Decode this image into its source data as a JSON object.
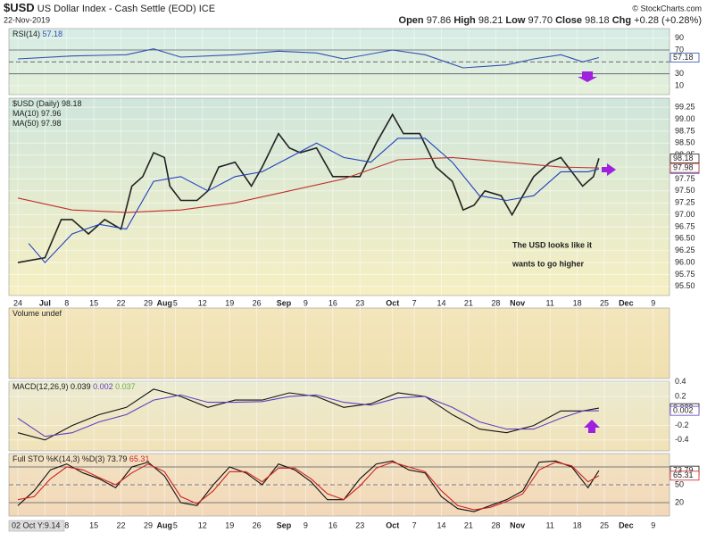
{
  "header": {
    "symbol": "$USD",
    "name": "US Dollar Index - Cash Settle (EOD)",
    "exchange": "ICE",
    "date": "22-Nov-2019",
    "quote": [
      {
        "label": "Open",
        "value": "97.86"
      },
      {
        "label": "High",
        "value": "98.21"
      },
      {
        "label": "Low",
        "value": "97.70"
      },
      {
        "label": "Close",
        "value": "98.18"
      },
      {
        "label": "Chg",
        "value": "+0.28 (+0.28%)"
      }
    ],
    "source": "© StockCharts.com",
    "cursor": "02 Oct Y:9.14"
  },
  "chart_data": [
    {
      "type": "line",
      "title": "RSI(14)",
      "ylim": [
        -5,
        106
      ],
      "yticks": [
        90,
        70,
        30,
        10
      ],
      "levels": [
        70,
        50,
        30
      ],
      "series": [
        {
          "color": "#3050b0",
          "value_label": "57.18",
          "x": [
            0,
            10,
            20,
            25,
            30,
            40,
            48,
            55,
            60,
            69,
            75,
            82,
            90,
            95,
            100,
            104,
            107
          ],
          "values": [
            55,
            60,
            62,
            72,
            58,
            62,
            68,
            65,
            55,
            70,
            62,
            40,
            45,
            55,
            62,
            50,
            57.18
          ]
        }
      ]
    },
    {
      "type": "line",
      "xlim": [
        -1.64,
        120
      ],
      "xticks": [
        {
          "value": 0,
          "label": "24"
        },
        {
          "value": 5,
          "label": "Jul"
        },
        {
          "value": 9,
          "label": "8"
        },
        {
          "value": 14,
          "label": "15"
        },
        {
          "value": 19,
          "label": "22"
        },
        {
          "value": 24,
          "label": "29"
        },
        {
          "value": 27,
          "label": "Aug"
        },
        {
          "value": 29,
          "label": "5"
        },
        {
          "value": 34,
          "label": "12"
        },
        {
          "value": 39,
          "label": "19"
        },
        {
          "value": 44,
          "label": "26"
        },
        {
          "value": 49,
          "label": "Sep"
        },
        {
          "value": 53,
          "label": "9"
        },
        {
          "value": 58,
          "label": "16"
        },
        {
          "value": 63,
          "label": "23"
        },
        {
          "value": 69,
          "label": "Oct"
        },
        {
          "value": 73,
          "label": "7"
        },
        {
          "value": 78,
          "label": "14"
        },
        {
          "value": 83,
          "label": "21"
        },
        {
          "value": 88,
          "label": "28"
        },
        {
          "value": 92,
          "label": "Nov"
        },
        {
          "value": 98,
          "label": "11"
        },
        {
          "value": 103,
          "label": "18"
        },
        {
          "value": 108,
          "label": "25"
        },
        {
          "value": 112,
          "label": "Dec"
        },
        {
          "value": 117,
          "label": "9"
        }
      ],
      "ylim": [
        95.31,
        99.44
      ],
      "yticks": [
        99.25,
        {
          "value": 99,
          "label": "99.00"
        },
        98.75,
        {
          "value": 98.5,
          "label": "98.50"
        },
        98.25,
        {
          "value": 98,
          "label": "98.00"
        },
        97.75,
        {
          "value": 97.5,
          "label": "97.50"
        },
        97.25,
        {
          "value": 97,
          "label": "97.00"
        },
        96.75,
        {
          "value": 96.5,
          "label": "96.50"
        },
        96.25,
        {
          "value": 96,
          "label": "96.00"
        },
        95.75,
        {
          "value": 95.5,
          "label": "95.50"
        }
      ],
      "annotation": [
        "The USD looks like it",
        "wants to go higher"
      ],
      "series": [
        {
          "name": "$USD (Daily)",
          "color": "#222222",
          "value_label": "98.18",
          "x": [
            0,
            5,
            8,
            10,
            13,
            16,
            19,
            21,
            23,
            25,
            27,
            28,
            30,
            33,
            35,
            37,
            40,
            43,
            45,
            48,
            50,
            52,
            55,
            58,
            60,
            63,
            66,
            69,
            71,
            74,
            77,
            80,
            82,
            84,
            86,
            89,
            91,
            93,
            95,
            98,
            100,
            102,
            104,
            106,
            107
          ],
          "values": [
            96.0,
            96.1,
            96.9,
            96.9,
            96.6,
            96.9,
            96.7,
            97.6,
            97.8,
            98.3,
            98.2,
            97.6,
            97.3,
            97.3,
            97.5,
            98.0,
            98.1,
            97.6,
            98.0,
            98.7,
            98.4,
            98.3,
            98.4,
            97.8,
            97.8,
            97.8,
            98.5,
            99.1,
            98.7,
            98.7,
            98.0,
            97.7,
            97.1,
            97.2,
            97.5,
            97.4,
            97.0,
            97.4,
            97.8,
            98.1,
            98.2,
            97.9,
            97.6,
            97.8,
            98.18
          ]
        },
        {
          "name": "MA(10)",
          "color": "#2040c0",
          "value_label": "97.96",
          "x": [
            2,
            5,
            10,
            15,
            20,
            25,
            30,
            35,
            40,
            45,
            50,
            55,
            60,
            65,
            70,
            75,
            80,
            85,
            90,
            95,
            100,
            105,
            107
          ],
          "values": [
            96.4,
            96.0,
            96.6,
            96.8,
            96.7,
            97.7,
            97.8,
            97.5,
            97.8,
            97.9,
            98.2,
            98.5,
            98.2,
            98.1,
            98.6,
            98.6,
            98.1,
            97.4,
            97.3,
            97.4,
            97.9,
            97.9,
            97.96
          ]
        },
        {
          "name": "MA(50)",
          "color": "#c03030",
          "value_label": "97.98",
          "x": [
            0,
            10,
            20,
            30,
            40,
            50,
            60,
            70,
            80,
            90,
            100,
            107
          ],
          "values": [
            97.35,
            97.1,
            97.05,
            97.1,
            97.25,
            97.5,
            97.75,
            98.15,
            98.2,
            98.1,
            98.0,
            97.98
          ]
        }
      ]
    },
    {
      "type": "line",
      "title": "Volume undef",
      "series": []
    },
    {
      "type": "line",
      "title": "MACD(12,26,9)",
      "histogram_label": "0.037",
      "ylim": [
        -0.55,
        0.41
      ],
      "yticks": [
        0.4,
        0.2,
        -0.2,
        -0.4
      ],
      "series": [
        {
          "color": "#111111",
          "value_label": "0.039",
          "x": [
            0,
            5,
            10,
            15,
            20,
            25,
            30,
            35,
            40,
            45,
            50,
            55,
            60,
            65,
            70,
            75,
            80,
            85,
            90,
            95,
            100,
            104,
            107
          ],
          "values": [
            -0.3,
            -0.4,
            -0.2,
            -0.05,
            0.05,
            0.3,
            0.2,
            0.05,
            0.15,
            0.15,
            0.25,
            0.2,
            0.05,
            0.1,
            0.25,
            0.2,
            -0.05,
            -0.25,
            -0.3,
            -0.2,
            0.0,
            0.0,
            0.039
          ]
        },
        {
          "color": "#6040c0",
          "value_label": "0.002",
          "x": [
            0,
            5,
            10,
            15,
            20,
            25,
            30,
            35,
            40,
            45,
            50,
            55,
            60,
            65,
            70,
            75,
            80,
            85,
            90,
            95,
            100,
            104,
            107
          ],
          "values": [
            -0.1,
            -0.35,
            -0.3,
            -0.15,
            -0.05,
            0.15,
            0.22,
            0.12,
            0.12,
            0.13,
            0.2,
            0.22,
            0.12,
            0.08,
            0.18,
            0.2,
            0.05,
            -0.15,
            -0.25,
            -0.25,
            -0.1,
            0.0,
            0.002
          ]
        }
      ]
    },
    {
      "type": "line",
      "title": "Full STO %K(14,3) %D(3)",
      "ylim": [
        -2.5,
        102.5
      ],
      "yticks": [
        50,
        20
      ],
      "levels": [
        80,
        50,
        20
      ],
      "series": [
        {
          "color": "#111111",
          "value_label": "73.79",
          "x": [
            0,
            3,
            6,
            9,
            12,
            15,
            18,
            21,
            24,
            27,
            30,
            33,
            36,
            39,
            42,
            45,
            48,
            51,
            54,
            57,
            60,
            63,
            66,
            69,
            72,
            75,
            78,
            81,
            84,
            87,
            90,
            93,
            96,
            99,
            102,
            105,
            107
          ],
          "values": [
            15,
            40,
            75,
            85,
            70,
            60,
            45,
            80,
            88,
            65,
            20,
            15,
            50,
            80,
            70,
            50,
            85,
            75,
            55,
            25,
            25,
            60,
            85,
            90,
            75,
            70,
            30,
            10,
            5,
            15,
            25,
            40,
            88,
            90,
            80,
            45,
            73.79
          ]
        },
        {
          "color": "#d02020",
          "value_label": "65.31",
          "x": [
            0,
            3,
            6,
            9,
            12,
            15,
            18,
            21,
            24,
            27,
            30,
            33,
            36,
            39,
            42,
            45,
            48,
            51,
            54,
            57,
            60,
            63,
            66,
            69,
            72,
            75,
            78,
            81,
            84,
            87,
            90,
            93,
            96,
            99,
            102,
            105,
            107
          ],
          "values": [
            25,
            30,
            60,
            80,
            75,
            62,
            50,
            70,
            85,
            72,
            30,
            18,
            40,
            72,
            72,
            55,
            78,
            78,
            60,
            35,
            25,
            48,
            78,
            88,
            80,
            72,
            40,
            15,
            8,
            12,
            22,
            35,
            75,
            88,
            82,
            55,
            65.31
          ]
        }
      ]
    }
  ]
}
